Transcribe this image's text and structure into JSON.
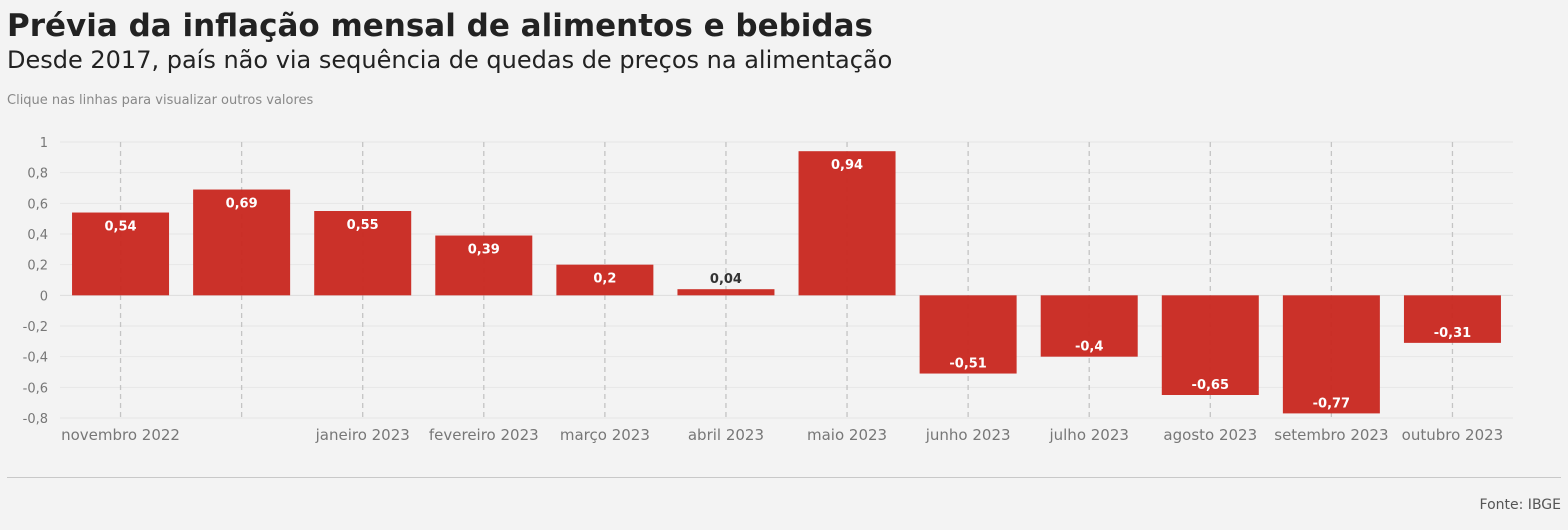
{
  "header": {
    "title": "Prévia da inflação mensal de alimentos e bebidas",
    "subtitle": "Desde 2017, país não via sequência de quedas de preços na alimentação",
    "note": "Clique nas linhas para visualizar outros valores"
  },
  "footer": {
    "source": "Fonte: IBGE"
  },
  "chart_data": {
    "type": "bar",
    "categories": [
      "novembro 2022",
      "",
      "janeiro 2023",
      "fevereiro 2023",
      "março 2023",
      "abril 2023",
      "maio 2023",
      "junho 2023",
      "julho 2023",
      "agosto 2023",
      "setembro 2023",
      "outubro 2023"
    ],
    "values": [
      0.54,
      0.69,
      0.55,
      0.39,
      0.2,
      0.04,
      0.94,
      -0.51,
      -0.4,
      -0.65,
      -0.77,
      -0.31
    ],
    "value_labels": [
      "0,54",
      "0,69",
      "0,55",
      "0,39",
      "0,2",
      "0,04",
      "0,94",
      "-0,51",
      "-0,4",
      "-0,65",
      "-0,77",
      "-0,31"
    ],
    "y_ticks": [
      1,
      0.8,
      0.6,
      0.4,
      0.2,
      0,
      -0.2,
      -0.4,
      -0.6,
      -0.8
    ],
    "y_tick_labels": [
      "1",
      "0,8",
      "0,6",
      "0,4",
      "0,2",
      "0",
      "-0,2",
      "-0,4",
      "-0,6",
      "-0,8"
    ],
    "ylim": [
      -0.8,
      1
    ],
    "bar_color": "#c92a22",
    "grid": true,
    "legend": "none"
  }
}
